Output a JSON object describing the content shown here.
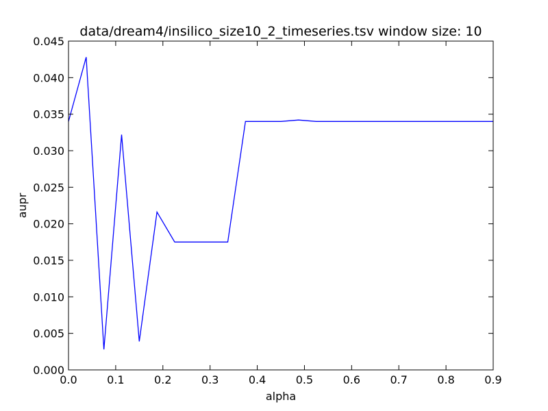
{
  "chart_data": {
    "type": "line",
    "title": "data/dream4/insilico_size10_2_timeseries.tsv window size: 10",
    "xlabel": "alpha",
    "ylabel": "aupr",
    "xlim": [
      0.0,
      0.9
    ],
    "ylim": [
      0.0,
      0.045
    ],
    "xticks": [
      0.0,
      0.1,
      0.2,
      0.3,
      0.4,
      0.5,
      0.6,
      0.7,
      0.8,
      0.9
    ],
    "xtick_labels": [
      "0.0",
      "0.1",
      "0.2",
      "0.3",
      "0.4",
      "0.5",
      "0.6",
      "0.7",
      "0.8",
      "0.9"
    ],
    "yticks": [
      0.0,
      0.005,
      0.01,
      0.015,
      0.02,
      0.025,
      0.03,
      0.035,
      0.04,
      0.045
    ],
    "ytick_labels": [
      "0.000",
      "0.005",
      "0.010",
      "0.015",
      "0.020",
      "0.025",
      "0.030",
      "0.035",
      "0.040",
      "0.045"
    ],
    "grid": false,
    "series": [
      {
        "color": "#0000ff",
        "x": [
          0.0,
          0.0375,
          0.075,
          0.1125,
          0.15,
          0.1875,
          0.225,
          0.2625,
          0.3,
          0.3375,
          0.375,
          0.4125,
          0.45,
          0.4875,
          0.525,
          0.5625,
          0.6,
          0.6375,
          0.675,
          0.7125,
          0.75,
          0.7875,
          0.825,
          0.8625,
          0.9
        ],
        "y": [
          0.034,
          0.0428,
          0.0028,
          0.0322,
          0.0039,
          0.0216,
          0.0175,
          0.0175,
          0.0175,
          0.0175,
          0.034,
          0.034,
          0.034,
          0.0342,
          0.034,
          0.034,
          0.034,
          0.034,
          0.034,
          0.034,
          0.034,
          0.034,
          0.034,
          0.034,
          0.034
        ]
      }
    ]
  }
}
